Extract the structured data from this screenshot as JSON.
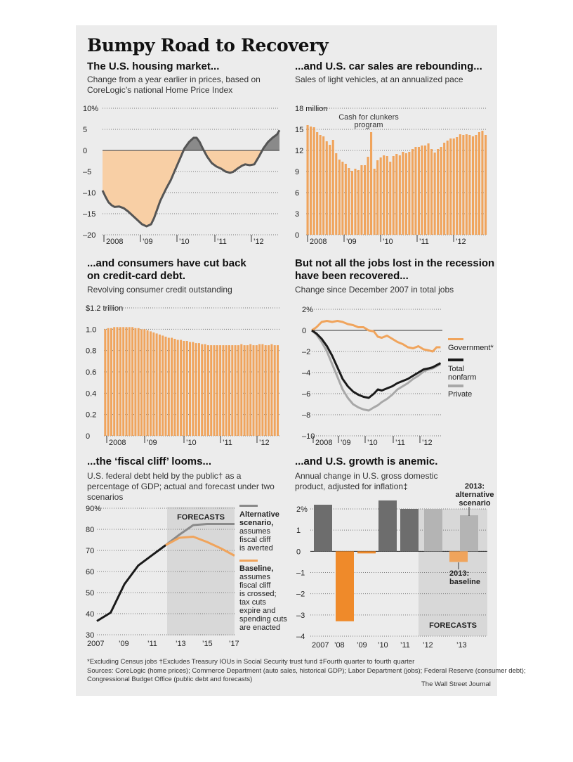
{
  "header": {
    "title": "Bumpy Road to Recovery"
  },
  "footer": {
    "footnotes": "*Excluding Census jobs    †Excludes Treasury IOUs in Social Security trust fund    ‡Fourth quarter to fourth quarter",
    "sources": "Sources: CoreLogic (home prices); Commerce Department (auto sales, historical GDP); Labor Department (jobs); Federal Reserve (consumer debt);",
    "sources2": "Congressional Budget Office (public debt and forecasts)",
    "credit": "The Wall Street Journal"
  },
  "colors": {
    "orange": "#f0a45c",
    "light_orange": "#f8cfa5",
    "dark_gray": "#6d6d6d",
    "mid_gray": "#8a8a8a",
    "light_gray": "#b4b4b4",
    "forecast_bg": "#d8d8d8",
    "baseline_orange": "#ef8a2a"
  },
  "chart_data": [
    {
      "id": "housing",
      "type": "area",
      "title": "The U.S. housing market...",
      "subtitle": "Change from a year earlier in prices, based on CoreLogic’s national Home Price Index",
      "y_ticks": [
        "10%",
        "5",
        "0",
        "–5",
        "–10",
        "–15",
        "–20"
      ],
      "x_ticks": [
        "2008",
        "’09",
        "’10",
        "’11",
        "’12"
      ],
      "ylim": [
        -20,
        10
      ],
      "xlim": [
        2007.0,
        2012.83
      ],
      "x": [
        2007.0,
        2007.1,
        2007.2,
        2007.3,
        2007.4,
        2007.55,
        2007.7,
        2007.85,
        2008.0,
        2008.15,
        2008.3,
        2008.45,
        2008.6,
        2008.7,
        2008.8,
        2008.9,
        2009.0,
        2009.1,
        2009.25,
        2009.4,
        2009.55,
        2009.7,
        2009.85,
        2010.0,
        2010.1,
        2010.2,
        2010.3,
        2010.45,
        2010.6,
        2010.75,
        2010.9,
        2011.05,
        2011.2,
        2011.3,
        2011.45,
        2011.6,
        2011.7,
        2011.85,
        2012.0,
        2012.15,
        2012.3,
        2012.45,
        2012.6,
        2012.75,
        2012.83
      ],
      "values": [
        -9.5,
        -11,
        -12.3,
        -13,
        -13.4,
        -13.3,
        -13.7,
        -14.5,
        -15.5,
        -16.5,
        -17.5,
        -18,
        -17.5,
        -16,
        -14,
        -12,
        -10.5,
        -9,
        -7,
        -4.5,
        -2,
        0.5,
        2,
        3,
        3,
        2,
        0.5,
        -1.5,
        -3,
        -3.8,
        -4.3,
        -5,
        -5.3,
        -5.1,
        -4.3,
        -3.6,
        -3.3,
        -3.5,
        -3.3,
        -1.5,
        0.5,
        2,
        3,
        3.8,
        4.8
      ]
    },
    {
      "id": "cars",
      "type": "bar",
      "title": "...and U.S. car sales are rebounding...",
      "subtitle": "Sales of light vehicles, at an annualized pace",
      "y_ticks": [
        "18 million",
        "15",
        "12",
        "9",
        "6",
        "3",
        "0"
      ],
      "x_ticks": [
        "2008",
        "’09",
        "’10",
        "’11",
        "’12"
      ],
      "annotation": [
        "Cash for clunkers",
        "program"
      ],
      "ylim": [
        0,
        18
      ],
      "values": [
        15.6,
        15.4,
        15.3,
        14.6,
        14.2,
        14.0,
        13.3,
        12.8,
        13.5,
        11.6,
        10.7,
        10.4,
        10.1,
        9.5,
        9.1,
        9.4,
        9.2,
        9.9,
        9.9,
        11.1,
        14.6,
        9.4,
        10.6,
        11.0,
        11.3,
        11.2,
        10.4,
        11.2,
        11.5,
        11.3,
        11.8,
        11.6,
        11.8,
        12.2,
        12.5,
        12.5,
        12.7,
        12.7,
        13.0,
        12.2,
        11.7,
        12.2,
        12.5,
        13.1,
        13.4,
        13.7,
        13.7,
        13.9,
        14.3,
        14.2,
        14.3,
        14.2,
        14.0,
        14.2,
        14.6,
        14.8,
        14.2
      ]
    },
    {
      "id": "credit",
      "type": "bar",
      "title": "...and consumers have cut back on credit-card debt.",
      "subtitle": "Revolving consumer credit outstanding",
      "y_ticks": [
        "$1.2 trillion",
        "1.0",
        "0.8",
        "0.6",
        "0.4",
        "0.2",
        "0"
      ],
      "x_ticks": [
        "2008",
        "’09",
        "’10",
        "’11",
        "’12"
      ],
      "ylim": [
        0,
        1.2
      ],
      "values": [
        1.0,
        1.01,
        1.01,
        1.02,
        1.02,
        1.02,
        1.02,
        1.02,
        1.02,
        1.02,
        1.01,
        1.01,
        1.0,
        1.0,
        0.99,
        0.98,
        0.97,
        0.96,
        0.95,
        0.94,
        0.93,
        0.92,
        0.92,
        0.91,
        0.9,
        0.9,
        0.89,
        0.89,
        0.88,
        0.88,
        0.87,
        0.87,
        0.86,
        0.86,
        0.85,
        0.85,
        0.85,
        0.85,
        0.85,
        0.85,
        0.85,
        0.85,
        0.85,
        0.85,
        0.85,
        0.86,
        0.85,
        0.85,
        0.86,
        0.85,
        0.85,
        0.86,
        0.86,
        0.85,
        0.85,
        0.86,
        0.85,
        0.85
      ]
    },
    {
      "id": "jobs",
      "type": "line",
      "title": "But not all the jobs lost in the recession have been recovered...",
      "subtitle": "Change since December 2007 in total jobs",
      "y_ticks": [
        "2%",
        "0",
        "–2",
        "–4",
        "–6",
        "–8",
        "–10"
      ],
      "x_ticks": [
        "2008",
        "’09",
        "’10",
        "’11",
        "’12"
      ],
      "ylim": [
        -10,
        2
      ],
      "xlim": [
        2007.92,
        2012.92
      ],
      "legend": [
        "Government*",
        "Total nonfarm",
        "Private"
      ],
      "legend_marks": [
        "Total",
        "nonfarm"
      ],
      "series": [
        {
          "name": "Government*",
          "color": "#f0a45c",
          "x": [
            2007.92,
            2008.1,
            2008.3,
            2008.5,
            2008.7,
            2008.9,
            2009.1,
            2009.3,
            2009.5,
            2009.7,
            2009.9,
            2010.1,
            2010.3,
            2010.45,
            2010.6,
            2010.8,
            2011.0,
            2011.2,
            2011.4,
            2011.6,
            2011.8,
            2012.0,
            2012.2,
            2012.4,
            2012.55,
            2012.7,
            2012.85
          ],
          "values": [
            0,
            0.3,
            0.8,
            0.9,
            0.8,
            0.9,
            0.8,
            0.6,
            0.5,
            0.3,
            0.3,
            0.0,
            -0.1,
            -0.6,
            -0.7,
            -0.5,
            -0.8,
            -1.1,
            -1.3,
            -1.6,
            -1.7,
            -1.5,
            -1.8,
            -1.9,
            -2.0,
            -1.6,
            -1.6
          ]
        },
        {
          "name": "Total nonfarm",
          "color": "#1a1a1a",
          "x": [
            2007.92,
            2008.1,
            2008.3,
            2008.5,
            2008.7,
            2008.9,
            2009.1,
            2009.3,
            2009.5,
            2009.7,
            2009.9,
            2010.1,
            2010.3,
            2010.45,
            2010.6,
            2010.8,
            2011.0,
            2011.2,
            2011.4,
            2011.6,
            2011.8,
            2012.0,
            2012.2,
            2012.4,
            2012.55,
            2012.7,
            2012.85
          ],
          "values": [
            0,
            -0.3,
            -0.8,
            -1.5,
            -2.4,
            -3.5,
            -4.6,
            -5.3,
            -5.8,
            -6.1,
            -6.3,
            -6.4,
            -6.0,
            -5.6,
            -5.7,
            -5.5,
            -5.3,
            -5.0,
            -4.8,
            -4.6,
            -4.3,
            -4.0,
            -3.7,
            -3.6,
            -3.5,
            -3.3,
            -3.1
          ]
        },
        {
          "name": "Private",
          "color": "#a8a8a8",
          "x": [
            2007.92,
            2008.1,
            2008.3,
            2008.5,
            2008.7,
            2008.9,
            2009.1,
            2009.3,
            2009.5,
            2009.7,
            2009.9,
            2010.1,
            2010.3,
            2010.45,
            2010.6,
            2010.8,
            2011.0,
            2011.2,
            2011.4,
            2011.6,
            2011.8,
            2012.0,
            2012.2,
            2012.4,
            2012.55,
            2012.7,
            2012.85
          ],
          "values": [
            0,
            -0.4,
            -1.1,
            -2.0,
            -3.2,
            -4.4,
            -5.6,
            -6.4,
            -7.0,
            -7.3,
            -7.5,
            -7.6,
            -7.3,
            -7.1,
            -6.8,
            -6.5,
            -6.1,
            -5.6,
            -5.3,
            -5.0,
            -4.6,
            -4.3,
            -3.9,
            -3.7,
            -3.6,
            -3.4,
            -3.2
          ]
        }
      ]
    },
    {
      "id": "debt",
      "type": "line",
      "title": "...the ‘fiscal cliff’ looms...",
      "subtitle": "U.S. federal debt held by the public† as a percentage of GDP; actual and forecast under two scenarios",
      "y_ticks": [
        "90%",
        "80",
        "70",
        "60",
        "50",
        "40",
        "30"
      ],
      "x_ticks": [
        "2007",
        "’09",
        "’11",
        "’13",
        "’15",
        "’17"
      ],
      "ylim": [
        30,
        90
      ],
      "xlim": [
        2007,
        2017
      ],
      "forecast_label": "FORECASTS",
      "series": [
        {
          "name": "Actual",
          "color": "#1a1a1a",
          "x": [
            2007,
            2008,
            2009,
            2010,
            2011,
            2012
          ],
          "values": [
            36.5,
            40.5,
            54,
            62.8,
            67.7,
            72.5
          ]
        },
        {
          "name": "Alternative scenario",
          "color": "#8a8a8a",
          "x": [
            2012,
            2013,
            2014,
            2015,
            2016,
            2017
          ],
          "values": [
            72.5,
            77.5,
            82,
            82.5,
            82.5,
            82.5
          ]
        },
        {
          "name": "Baseline",
          "color": "#f0a45c",
          "x": [
            2012,
            2013,
            2014,
            2015,
            2016,
            2017
          ],
          "values": [
            72.5,
            76,
            76.5,
            74,
            71,
            67.5
          ]
        }
      ],
      "labels": {
        "alt_head": [
          "Alternative",
          "scenario,"
        ],
        "alt_body": [
          "assumes",
          "fiscal cliff",
          "is averted"
        ],
        "base_head": [
          "Baseline,"
        ],
        "base_body": [
          "assumes",
          "fiscal cliff",
          "is crossed;",
          "tax cuts",
          "expire and",
          "spending cuts",
          "are enacted"
        ]
      }
    },
    {
      "id": "gdp",
      "type": "bar",
      "title": "...and U.S. growth is anemic.",
      "subtitle": "Annual change in U.S. gross domestic product, adjusted for inflation‡",
      "y_ticks": [
        "2%",
        "1",
        "0",
        "–1",
        "–2",
        "–3",
        "–4"
      ],
      "x_ticks": [
        "2007",
        "’08",
        "’09",
        "’10",
        "’11",
        "’12",
        "’13"
      ],
      "ylim": [
        -4,
        2.5
      ],
      "forecast_label": "FORECASTS",
      "categories": [
        "2007",
        "2008",
        "2009",
        "2010",
        "2011",
        "2012",
        "2013 alternative scenario",
        "2013 baseline"
      ],
      "values": [
        2.2,
        -3.3,
        -0.1,
        2.4,
        2.0,
        2.0,
        1.7,
        -0.5
      ],
      "labels": {
        "alt": [
          "2013:",
          "alternative",
          "scenario"
        ],
        "base": [
          "2013:",
          "baseline"
        ]
      }
    }
  ]
}
